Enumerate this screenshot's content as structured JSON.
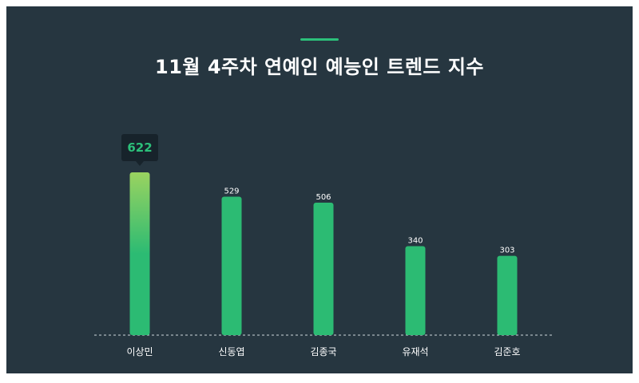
{
  "title": "11월 4주차 연예인 예능인 트렌드 지수",
  "colors": {
    "background": "#263640",
    "accent": "#2cc07a",
    "bar": "#2cbb73",
    "highlight_top": "#9ad360",
    "tooltip_bg": "#17232b",
    "baseline": "#cfd8dc"
  },
  "chart_data": {
    "type": "bar",
    "categories": [
      "이상민",
      "신동엽",
      "김종국",
      "유재석",
      "김준호"
    ],
    "values": [
      622,
      529,
      506,
      340,
      303
    ],
    "ylim": [
      0,
      622
    ],
    "grid": false,
    "highlight": {
      "index": 0,
      "label": "622"
    }
  }
}
